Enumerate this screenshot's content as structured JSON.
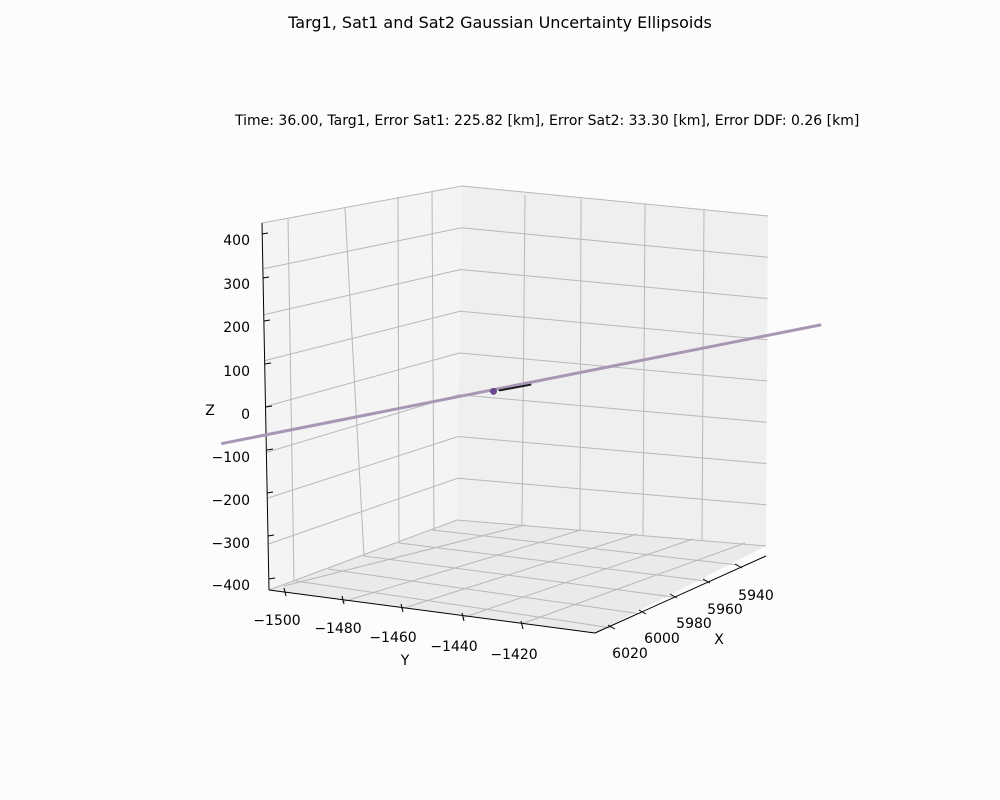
{
  "figure": {
    "title": "Targ1, Sat1 and Sat2 Gaussian Uncertainty Ellipsoids",
    "subtitle": "Time: 36.00, Targ1, Error Sat1: 225.82 [km], Error Sat2: 33.30 [km], Error DDF: 0.26 [km]"
  },
  "chart_data": {
    "type": "line",
    "projection": "3d",
    "title": "Targ1, Sat1 and Sat2 Gaussian Uncertainty Ellipsoids",
    "subtitle": "Time: 36.00, Targ1, Error Sat1: 225.82 [km], Error Sat2: 33.30 [km], Error DDF: 0.26 [km]",
    "xlabel": "X",
    "ylabel": "Y",
    "zlabel": "Z",
    "x_ticks": [
      "5940",
      "5960",
      "5980",
      "6000",
      "6020"
    ],
    "y_ticks": [
      "−1500",
      "−1480",
      "−1460",
      "−1440",
      "−1420"
    ],
    "z_ticks": [
      "400",
      "300",
      "200",
      "100",
      "0",
      "−100",
      "−200",
      "−300",
      "−400"
    ],
    "xlim": [
      5930,
      6030
    ],
    "ylim": [
      -1510,
      -1410
    ],
    "zlim": [
      -420,
      420
    ],
    "grid": true,
    "series": [
      {
        "color": "#a796b4",
        "points": [
          {
            "y": -1507,
            "z": -98
          },
          {
            "y": -1410,
            "z": 152
          }
        ]
      },
      {
        "color": "#1b1b1b",
        "points": [
          {
            "y": -1462,
            "z": 14
          },
          {
            "y": -1457,
            "z": 26
          }
        ]
      }
    ],
    "target_marker": {
      "y": -1463,
      "z": 12,
      "color": "#6a4a8c"
    }
  }
}
